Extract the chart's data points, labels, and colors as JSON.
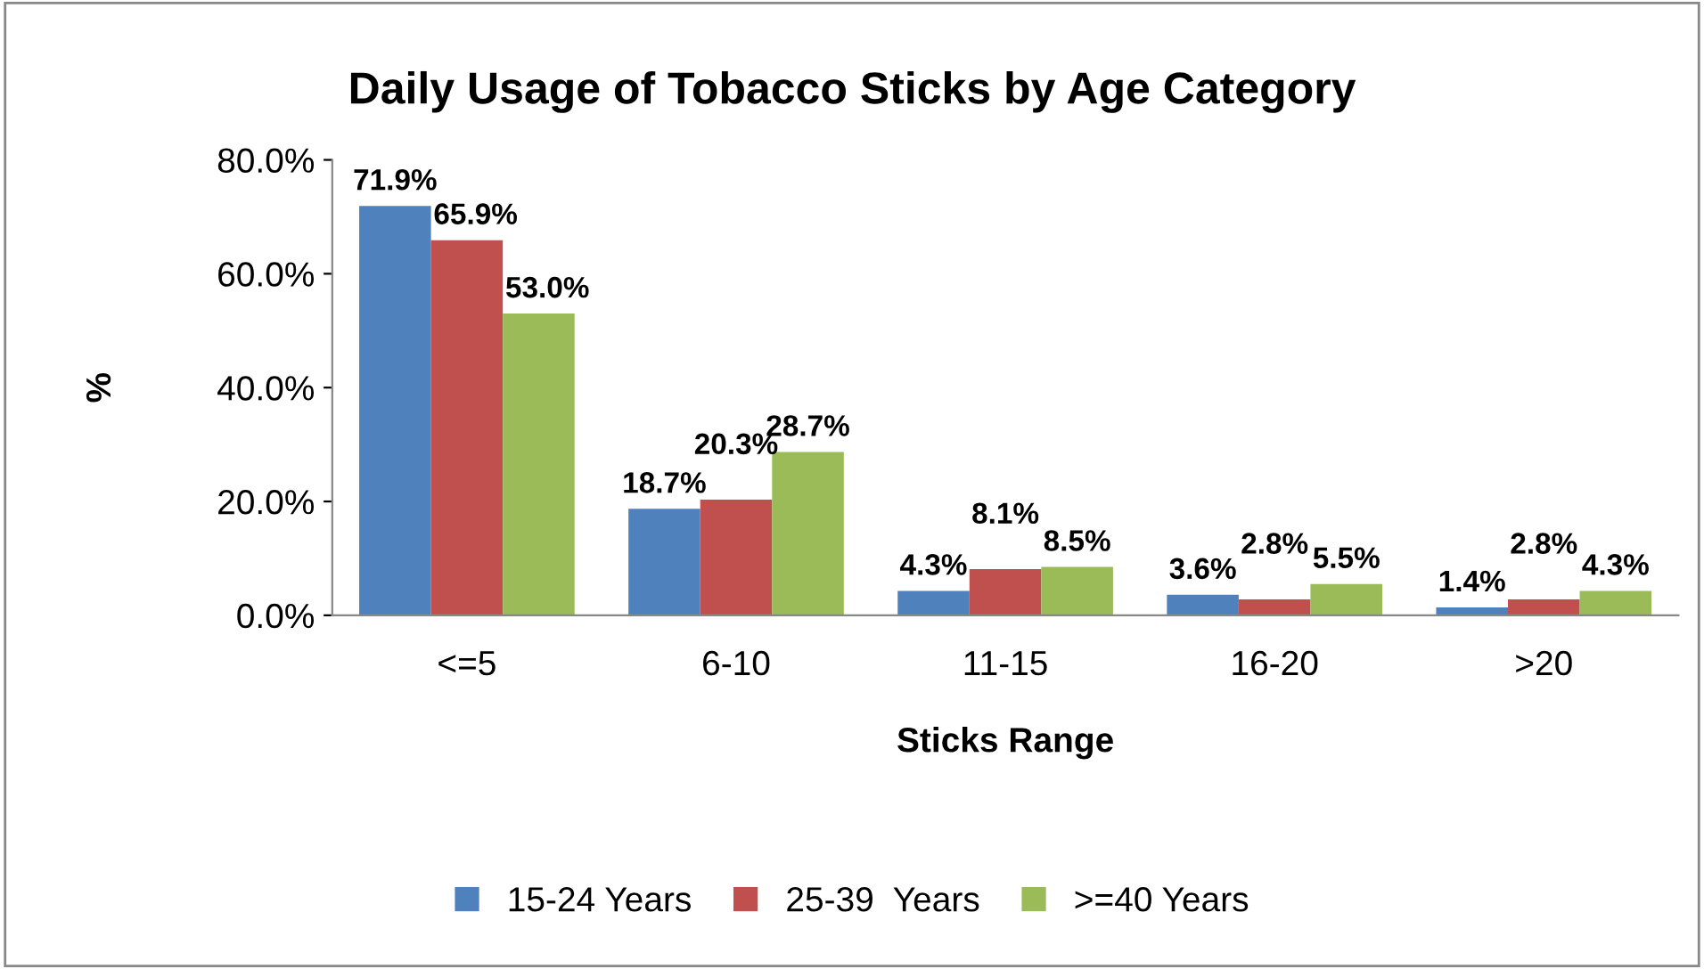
{
  "chart_data": {
    "type": "bar",
    "title": "Daily Usage of Tobacco Sticks by Age Category",
    "xlabel": "Sticks Range",
    "ylabel": "%",
    "categories": [
      "<=5",
      "6-10",
      "11-15",
      "16-20",
      ">20"
    ],
    "series": [
      {
        "name": "15-24 Years",
        "color": "#4f81bd",
        "values": [
          71.9,
          18.7,
          4.3,
          3.6,
          1.4
        ],
        "value_labels": [
          "71.9%",
          "18.7%",
          "4.3%",
          "3.6%",
          "1.4%"
        ]
      },
      {
        "name": "25-39  Years",
        "color": "#c0504d",
        "values": [
          65.9,
          20.3,
          8.1,
          2.8,
          2.8
        ],
        "value_labels": [
          "65.9%",
          "20.3%",
          "8.1%",
          "2.8%",
          "2.8%"
        ]
      },
      {
        "name": ">=40 Years",
        "color": "#9bbb59",
        "values": [
          53.0,
          28.7,
          8.5,
          5.5,
          4.3
        ],
        "value_labels": [
          "53.0%",
          "28.7%",
          "8.5%",
          "5.5%",
          "4.3%"
        ]
      }
    ],
    "ylim": [
      0,
      80
    ],
    "yticks": [
      {
        "value": 0,
        "label": "0.0%"
      },
      {
        "value": 20,
        "label": "20.0%"
      },
      {
        "value": 40,
        "label": "40.0%"
      },
      {
        "value": 60,
        "label": "60.0%"
      },
      {
        "value": 80,
        "label": "80.0%"
      }
    ],
    "grid": false,
    "legend": "bottom"
  }
}
